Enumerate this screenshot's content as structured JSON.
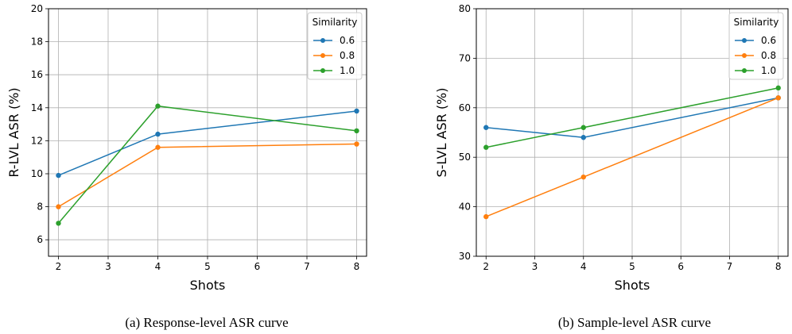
{
  "colors": {
    "blue": "#1f77b4",
    "orange": "#ff7f0e",
    "green": "#2ca02c"
  },
  "chart_data": [
    {
      "type": "line",
      "caption": "(a) Response-level ASR curve",
      "xlabel": "Shots",
      "ylabel": "R-LVL ASR (%)",
      "xlim": [
        1.8,
        8.2
      ],
      "ylim": [
        5,
        20
      ],
      "xticks": [
        2,
        3,
        4,
        5,
        6,
        7,
        8
      ],
      "yticks": [
        6,
        8,
        10,
        12,
        14,
        16,
        18,
        20
      ],
      "grid": true,
      "legend_title": "Similarity",
      "legend_position": "top-right",
      "x": [
        2,
        4,
        8
      ],
      "series": [
        {
          "name": "0.6",
          "color": "blue",
          "values": [
            9.9,
            12.4,
            13.8
          ]
        },
        {
          "name": "0.8",
          "color": "orange",
          "values": [
            8.0,
            11.6,
            11.8
          ]
        },
        {
          "name": "1.0",
          "color": "green",
          "values": [
            7.0,
            14.1,
            12.6
          ]
        }
      ]
    },
    {
      "type": "line",
      "caption": "(b) Sample-level ASR curve",
      "xlabel": "Shots",
      "ylabel": "S-LVL ASR (%)",
      "xlim": [
        1.8,
        8.2
      ],
      "ylim": [
        30,
        80
      ],
      "xticks": [
        2,
        3,
        4,
        5,
        6,
        7,
        8
      ],
      "yticks": [
        30,
        40,
        50,
        60,
        70,
        80
      ],
      "grid": true,
      "legend_title": "Similarity",
      "legend_position": "top-right",
      "x": [
        2,
        4,
        8
      ],
      "series": [
        {
          "name": "0.6",
          "color": "blue",
          "values": [
            56,
            54,
            62
          ]
        },
        {
          "name": "0.8",
          "color": "orange",
          "values": [
            38,
            46,
            62
          ]
        },
        {
          "name": "1.0",
          "color": "green",
          "values": [
            52,
            56,
            64
          ]
        }
      ]
    }
  ]
}
